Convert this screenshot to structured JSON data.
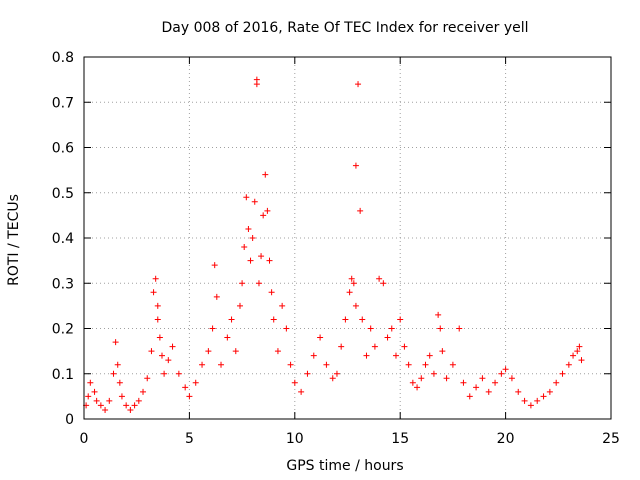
{
  "chart_data": {
    "type": "scatter",
    "title": "Day 008 of 2016, Rate Of TEC Index for receiver yell",
    "xlabel": "GPS time / hours",
    "ylabel": "ROTI / TECUs",
    "xlim": [
      0,
      25
    ],
    "ylim": [
      0,
      0.8
    ],
    "xticks": [
      0,
      5,
      10,
      15,
      20,
      25
    ],
    "xtick_labels": [
      "0",
      "5",
      "10",
      "15",
      "20",
      "25"
    ],
    "yticks": [
      0,
      0.1,
      0.2,
      0.3,
      0.4,
      0.5,
      0.6,
      0.7,
      0.8
    ],
    "ytick_labels": [
      "0",
      "0.1",
      "0.2",
      "0.3",
      "0.4",
      "0.5",
      "0.6",
      "0.7",
      "0.8"
    ],
    "grid": true,
    "marker": "+",
    "color": "#ff0000",
    "series": [
      {
        "name": "ROTI",
        "x": [
          0.1,
          0.2,
          0.3,
          0.5,
          0.6,
          0.8,
          1.0,
          1.2,
          1.4,
          1.5,
          1.6,
          1.7,
          1.8,
          2.0,
          2.2,
          2.4,
          2.6,
          2.8,
          3.0,
          3.2,
          3.3,
          3.4,
          3.5,
          3.5,
          3.6,
          3.7,
          3.8,
          4.0,
          4.2,
          4.5,
          4.8,
          5.0,
          5.3,
          5.6,
          5.9,
          6.1,
          6.2,
          6.3,
          6.5,
          6.8,
          7.0,
          7.2,
          7.4,
          7.5,
          7.6,
          7.7,
          7.8,
          7.9,
          8.0,
          8.1,
          8.2,
          8.2,
          8.3,
          8.4,
          8.5,
          8.6,
          8.7,
          8.8,
          8.9,
          9.0,
          9.2,
          9.4,
          9.6,
          9.8,
          10.0,
          10.3,
          10.6,
          10.9,
          11.2,
          11.5,
          11.8,
          12.0,
          12.2,
          12.4,
          12.6,
          12.7,
          12.8,
          12.9,
          12.9,
          13.0,
          13.1,
          13.2,
          13.4,
          13.6,
          13.8,
          14.0,
          14.2,
          14.4,
          14.6,
          14.8,
          15.0,
          15.2,
          15.4,
          15.6,
          15.8,
          16.0,
          16.2,
          16.4,
          16.6,
          16.8,
          16.9,
          17.0,
          17.2,
          17.5,
          17.8,
          18.0,
          18.3,
          18.6,
          18.9,
          19.2,
          19.5,
          19.8,
          20.0,
          20.3,
          20.6,
          20.9,
          21.2,
          21.5,
          21.8,
          22.1,
          22.4,
          22.7,
          23.0,
          23.2,
          23.4,
          23.5,
          23.6
        ],
        "y": [
          0.03,
          0.05,
          0.08,
          0.06,
          0.04,
          0.03,
          0.02,
          0.04,
          0.1,
          0.17,
          0.12,
          0.08,
          0.05,
          0.03,
          0.02,
          0.03,
          0.04,
          0.06,
          0.09,
          0.15,
          0.28,
          0.31,
          0.25,
          0.22,
          0.18,
          0.14,
          0.1,
          0.13,
          0.16,
          0.1,
          0.07,
          0.05,
          0.08,
          0.12,
          0.15,
          0.2,
          0.34,
          0.27,
          0.12,
          0.18,
          0.22,
          0.15,
          0.25,
          0.3,
          0.38,
          0.49,
          0.42,
          0.35,
          0.4,
          0.48,
          0.75,
          0.74,
          0.3,
          0.36,
          0.45,
          0.54,
          0.46,
          0.35,
          0.28,
          0.22,
          0.15,
          0.25,
          0.2,
          0.12,
          0.08,
          0.06,
          0.1,
          0.14,
          0.18,
          0.12,
          0.09,
          0.1,
          0.16,
          0.22,
          0.28,
          0.31,
          0.3,
          0.25,
          0.56,
          0.74,
          0.46,
          0.22,
          0.14,
          0.2,
          0.16,
          0.31,
          0.3,
          0.18,
          0.2,
          0.14,
          0.22,
          0.16,
          0.12,
          0.08,
          0.07,
          0.09,
          0.12,
          0.14,
          0.1,
          0.23,
          0.2,
          0.15,
          0.09,
          0.12,
          0.2,
          0.08,
          0.05,
          0.07,
          0.09,
          0.06,
          0.08,
          0.1,
          0.11,
          0.09,
          0.06,
          0.04,
          0.03,
          0.04,
          0.05,
          0.06,
          0.08,
          0.1,
          0.12,
          0.14,
          0.15,
          0.16,
          0.13
        ]
      }
    ]
  }
}
